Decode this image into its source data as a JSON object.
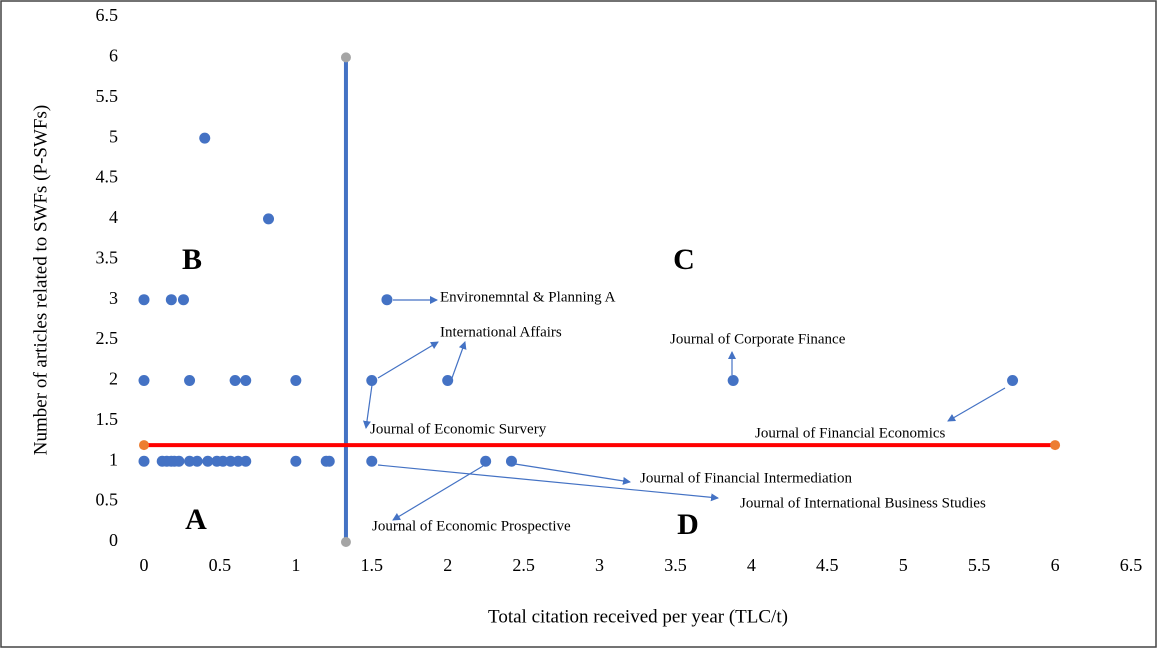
{
  "chart_data": {
    "type": "scatter",
    "xlabel": "Total citation received per year (TLC/t)",
    "ylabel": "Number of articles related to SWFs (P-SWFs)",
    "xlim": [
      0,
      6.5
    ],
    "ylim": [
      0,
      6.5
    ],
    "xticks": [
      0,
      0.5,
      1,
      1.5,
      2,
      2.5,
      3,
      3.5,
      4,
      4.5,
      5,
      5.5,
      6,
      6.5
    ],
    "yticks": [
      0,
      0.5,
      1,
      1.5,
      2,
      2.5,
      3,
      3.5,
      4,
      4.5,
      5,
      5.5,
      6,
      6.5
    ],
    "series": [
      {
        "color": "#4472c4",
        "x": [
          0,
          0.18,
          0.26,
          0.4,
          0.82,
          1.6,
          0,
          0.3,
          0.6,
          0.67,
          1,
          1.5,
          2,
          3.88,
          5.72,
          0,
          0.12,
          0.15,
          0.18,
          0.2,
          0.23,
          0.3,
          0.35,
          0.42,
          0.48,
          0.52,
          0.57,
          0.62,
          0.67,
          1,
          1.2,
          1.22,
          1.5,
          2.25,
          2.42
        ],
        "values": [
          3,
          3,
          3,
          5,
          4,
          3,
          2,
          2,
          2,
          2,
          2,
          2,
          2,
          2,
          2,
          1,
          1,
          1,
          1,
          1,
          1,
          1,
          1,
          1,
          1,
          1,
          1,
          1,
          1,
          1,
          1,
          1,
          1,
          1,
          1
        ]
      }
    ],
    "lines": [
      {
        "color": "#4472c4",
        "marker_color": "#a5a5a5",
        "x": [
          1.33,
          1.33
        ],
        "values": [
          0,
          6
        ]
      },
      {
        "color": "#ff0000",
        "marker_color": "#ed7d31",
        "x": [
          0,
          6
        ],
        "values": [
          1.2,
          1.2
        ]
      }
    ],
    "quadrants": [
      "A",
      "B",
      "C",
      "D"
    ],
    "annotations": [
      "Environemntal & Planning A",
      "International Affairs",
      "Journal of Corporate Finance",
      "Journal of Economic Survery",
      "Journal of Financial Economics",
      "Journal of Financial Intermediation",
      "Journal of International Business Studies",
      "Journal of Economic Prospective"
    ]
  }
}
